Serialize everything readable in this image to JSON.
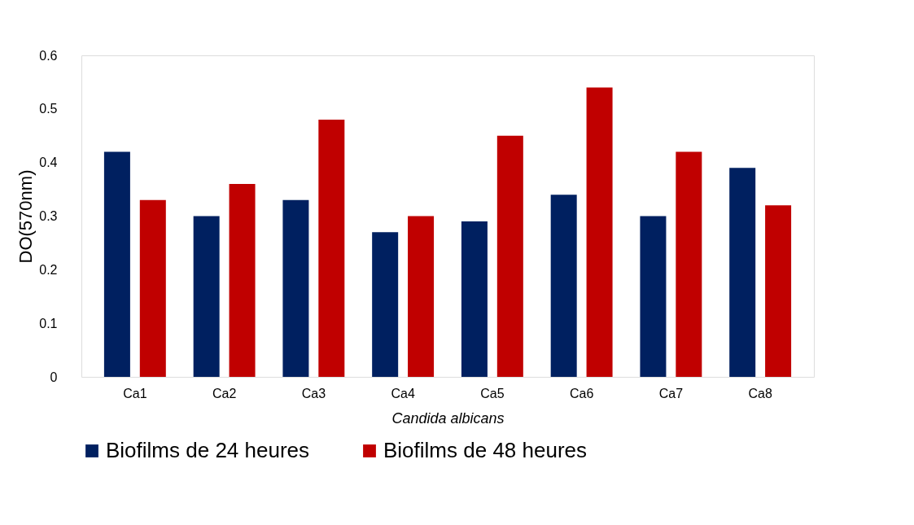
{
  "chart_data": {
    "type": "bar",
    "xlabel": "Candida albicans",
    "ylabel": "DO(570nm)",
    "categories": [
      "Ca1",
      "Ca2",
      "Ca3",
      "Ca4",
      "Ca5",
      "Ca6",
      "Ca7",
      "Ca8"
    ],
    "series": [
      {
        "name": "Biofilms de 24 heures",
        "color": "#002060",
        "values": [
          0.42,
          0.3,
          0.33,
          0.27,
          0.29,
          0.34,
          0.3,
          0.39
        ]
      },
      {
        "name": "Biofilms de 48 heures",
        "color": "#c00000",
        "values": [
          0.33,
          0.36,
          0.48,
          0.3,
          0.45,
          0.54,
          0.42,
          0.32
        ]
      }
    ],
    "ylim": [
      0,
      0.6
    ],
    "yticks": [
      0,
      0.1,
      0.2,
      0.3,
      0.4,
      0.5,
      0.6
    ],
    "grid": false,
    "legend": "bottom"
  }
}
